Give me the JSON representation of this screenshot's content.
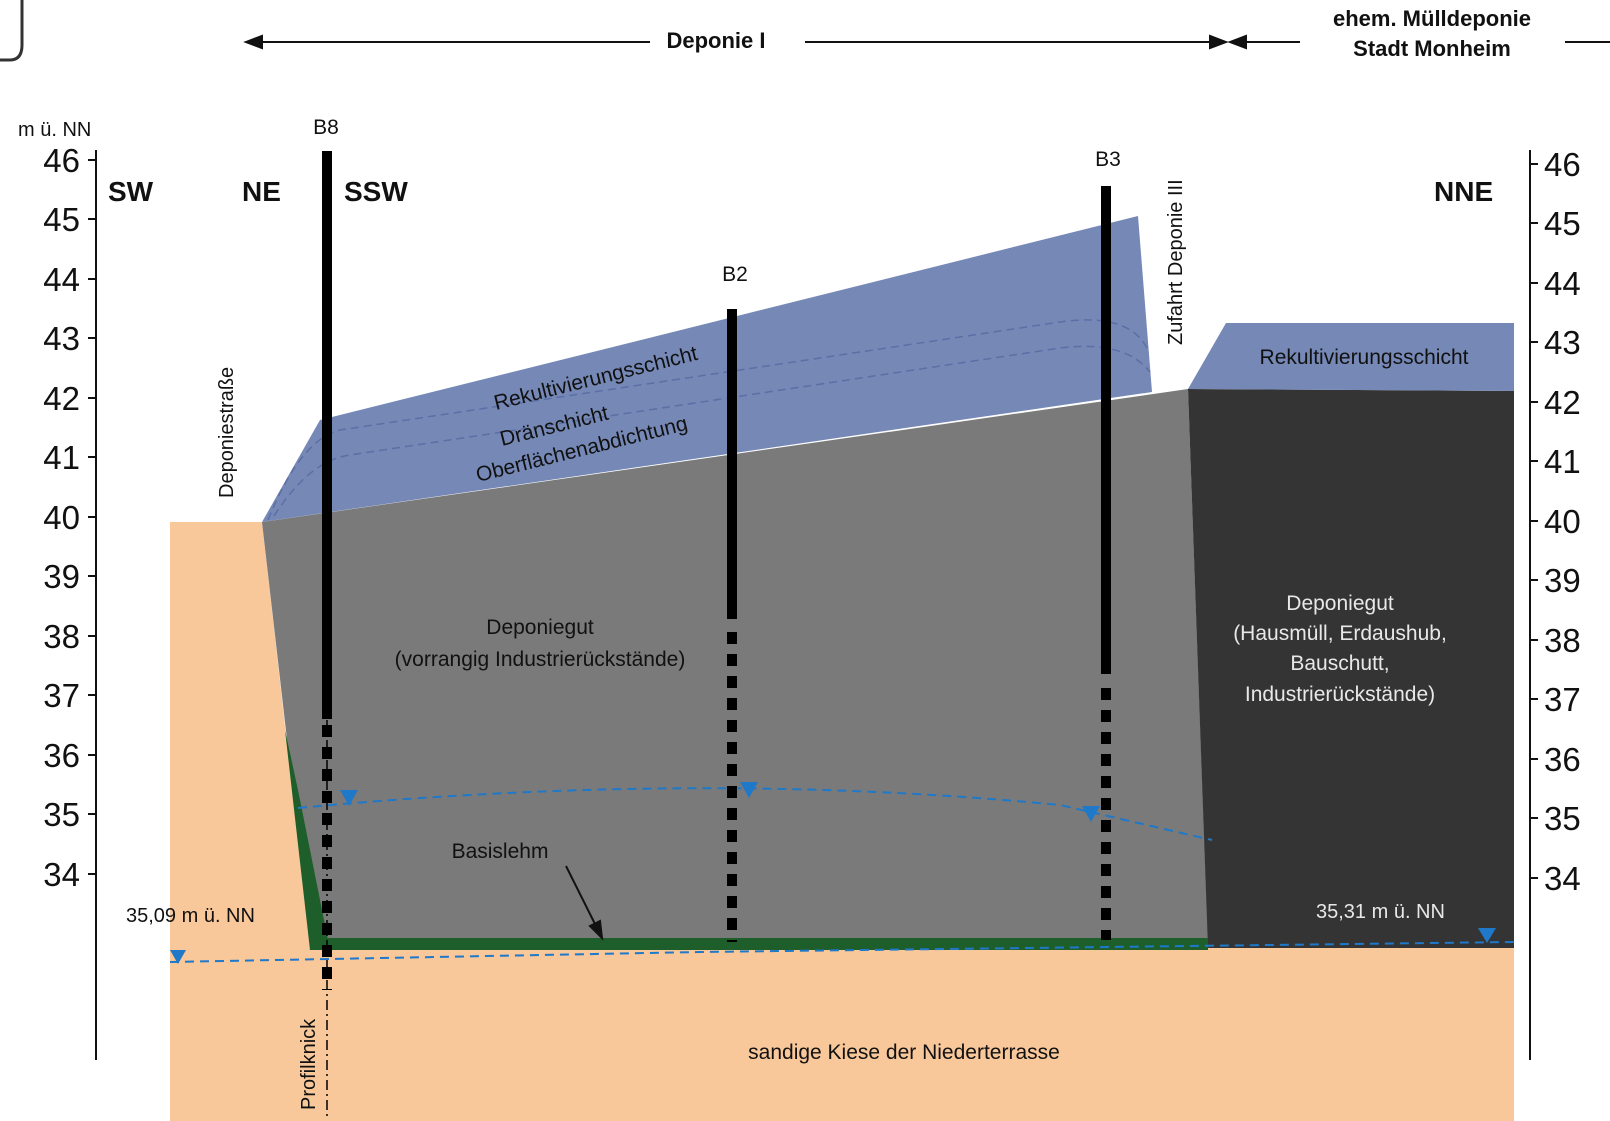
{
  "header": {
    "deponie": "Deponie I",
    "muelldeponie_line1": "ehem. Mülldeponie",
    "muelldeponie_line2": "Stadt Monheim"
  },
  "axis": {
    "unit": "m ü. NN",
    "ticks": [
      "46",
      "45",
      "44",
      "43",
      "42",
      "41",
      "40",
      "39",
      "38",
      "37",
      "36",
      "35",
      "34"
    ]
  },
  "directions": {
    "sw": "SW",
    "ne": "NE",
    "ssw": "SSW",
    "nne": "NNE"
  },
  "boreholes": {
    "b8": "B8",
    "b2": "B2",
    "b3": "B3"
  },
  "labels": {
    "deponiestrasse": "Deponiestraße",
    "zufahrt": "Zufahrt Deponie III",
    "rekultivierung": "Rekultivierungsschicht",
    "draenschicht": "Dränschicht",
    "oberflaeche": "Oberflächenabdichtung",
    "rekultivierung_right": "Rekultivierungsschicht",
    "deponiegut_left_1": "Deponiegut",
    "deponiegut_left_2": "(vorrangig Industrierückstände)",
    "deponiegut_right_1": "Deponiegut",
    "deponiegut_right_2": "(Hausmüll, Erdaushub,",
    "deponiegut_right_3": "Bauschutt,",
    "deponiegut_right_4": "Industrierückstände)",
    "basislehm": "Basislehm",
    "gw_left": "35,09 m ü. NN",
    "gw_right": "35,31 m ü. NN",
    "kiese": "sandige Kiese der Niederterrasse",
    "profilknick": "Profilknick"
  },
  "colors": {
    "sand": "#f8c79a",
    "landfill_grey": "#7a7a7a",
    "landfill_dark": "#343434",
    "cover_blue": "#7588b6",
    "basislehm_green": "#1d5e2a",
    "groundwater_blue": "#1f78c8"
  }
}
